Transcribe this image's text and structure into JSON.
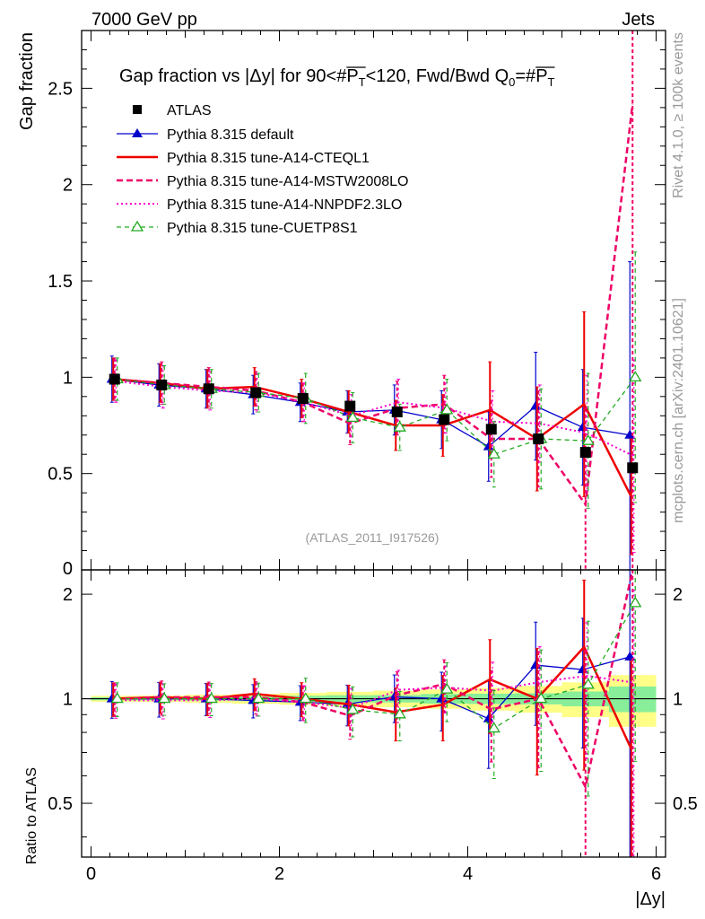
{
  "header": {
    "energy_label": "7000 GeV pp",
    "category_label": "Jets",
    "side_rivet": "Rivet 4.1.0, ≥ 100k events",
    "side_mcplots": "mcplots.cern.ch [arXiv:2401.10621]"
  },
  "chart_data": {
    "type": "line",
    "title": "Gap fraction vs |Δy| for 90<#P_T<120, Fwd/Bwd Q_0=#P_T",
    "title_parts": {
      "lead": "Gap fraction vs |Δy| for 90<#",
      "pt1": "P",
      "pt1_sub": "T",
      "mid": "<120, Fwd/Bwd Q",
      "q_sub": "0",
      "eq": "=#",
      "pt2": "P",
      "pt2_sub": "T"
    },
    "xlabel": "|Δy|",
    "ylabel": "Gap fraction",
    "ratio_ylabel": "Ratio to ATLAS",
    "analysis_label": "(ATLAS_2011_I917526)",
    "xlim": [
      -0.1,
      6.1
    ],
    "ylim": [
      0,
      2.8
    ],
    "ratio_ylim": [
      0.35,
      2.35
    ],
    "x_ticks": [
      0,
      2,
      4,
      6
    ],
    "y_ticks": [
      0.5,
      1,
      1.5,
      2,
      2.5
    ],
    "y_zero_label": "0",
    "ratio_ticks": [
      0.5,
      1,
      2
    ],
    "x": [
      0.25,
      0.75,
      1.25,
      1.75,
      2.25,
      2.75,
      3.25,
      3.75,
      4.25,
      4.75,
      5.25,
      5.75
    ],
    "data": {
      "name": "ATLAS",
      "values": [
        0.99,
        0.96,
        0.94,
        0.92,
        0.89,
        0.85,
        0.82,
        0.78,
        0.73,
        0.68,
        0.61,
        0.53
      ],
      "band_inner": [
        0.01,
        0.01,
        0.012,
        0.014,
        0.018,
        0.02,
        0.02,
        0.025,
        0.025,
        0.025,
        0.03,
        0.045
      ],
      "band_outer": [
        0.02,
        0.02,
        0.025,
        0.03,
        0.035,
        0.04,
        0.045,
        0.05,
        0.055,
        0.06,
        0.07,
        0.09
      ]
    },
    "series": [
      {
        "name": "Pythia 8.315 default",
        "color": "#0000cc",
        "style": "solid-thin",
        "marker": "triangle",
        "values": [
          0.99,
          0.96,
          0.94,
          0.91,
          0.87,
          0.82,
          0.83,
          0.78,
          0.64,
          0.85,
          0.74,
          0.7
        ],
        "errors": [
          0.12,
          0.11,
          0.1,
          0.1,
          0.1,
          0.11,
          0.13,
          0.15,
          0.18,
          0.28,
          0.3,
          0.9
        ]
      },
      {
        "name": "Pythia 8.315 tune-A14-CTEQL1",
        "color": "#ee0000",
        "style": "solid-thick",
        "marker": "none",
        "values": [
          0.99,
          0.97,
          0.94,
          0.95,
          0.89,
          0.82,
          0.75,
          0.75,
          0.83,
          0.68,
          0.86,
          0.38
        ],
        "errors": [
          0.11,
          0.1,
          0.1,
          0.1,
          0.1,
          0.11,
          0.13,
          0.16,
          0.25,
          0.27,
          0.48,
          0.3
        ]
      },
      {
        "name": "Pythia 8.315 tune-A14-MSTW2008LO",
        "color": "#ee0066",
        "style": "dashed",
        "marker": "none",
        "values": [
          0.99,
          0.97,
          0.95,
          0.93,
          0.87,
          0.76,
          0.84,
          0.86,
          0.68,
          0.68,
          0.34,
          2.42
        ],
        "errors": [
          0.11,
          0.11,
          0.1,
          0.1,
          0.1,
          0.11,
          0.14,
          0.15,
          0.2,
          0.25,
          0.5,
          2.45
        ]
      },
      {
        "name": "Pythia 8.315 tune-A14-NNPDF2.3LO",
        "color": "#ff00cc",
        "style": "dotted",
        "marker": "none",
        "values": [
          0.98,
          0.95,
          0.93,
          0.92,
          0.87,
          0.8,
          0.87,
          0.84,
          0.77,
          0.76,
          0.71,
          0.59
        ],
        "errors": [
          0.11,
          0.11,
          0.1,
          0.1,
          0.1,
          0.11,
          0.12,
          0.13,
          0.16,
          0.2,
          0.3,
          0.5
        ]
      },
      {
        "name": "Pythia 8.315 tune-CUETP8S1",
        "color": "#22aa22",
        "style": "dashed-thin",
        "marker": "open-triangle",
        "values": [
          0.99,
          0.96,
          0.94,
          0.92,
          0.89,
          0.79,
          0.74,
          0.83,
          0.6,
          0.68,
          0.67,
          1.0
        ],
        "errors": [
          0.11,
          0.1,
          0.1,
          0.1,
          0.13,
          0.13,
          0.12,
          0.16,
          0.17,
          0.26,
          0.35,
          0.65
        ]
      }
    ]
  }
}
